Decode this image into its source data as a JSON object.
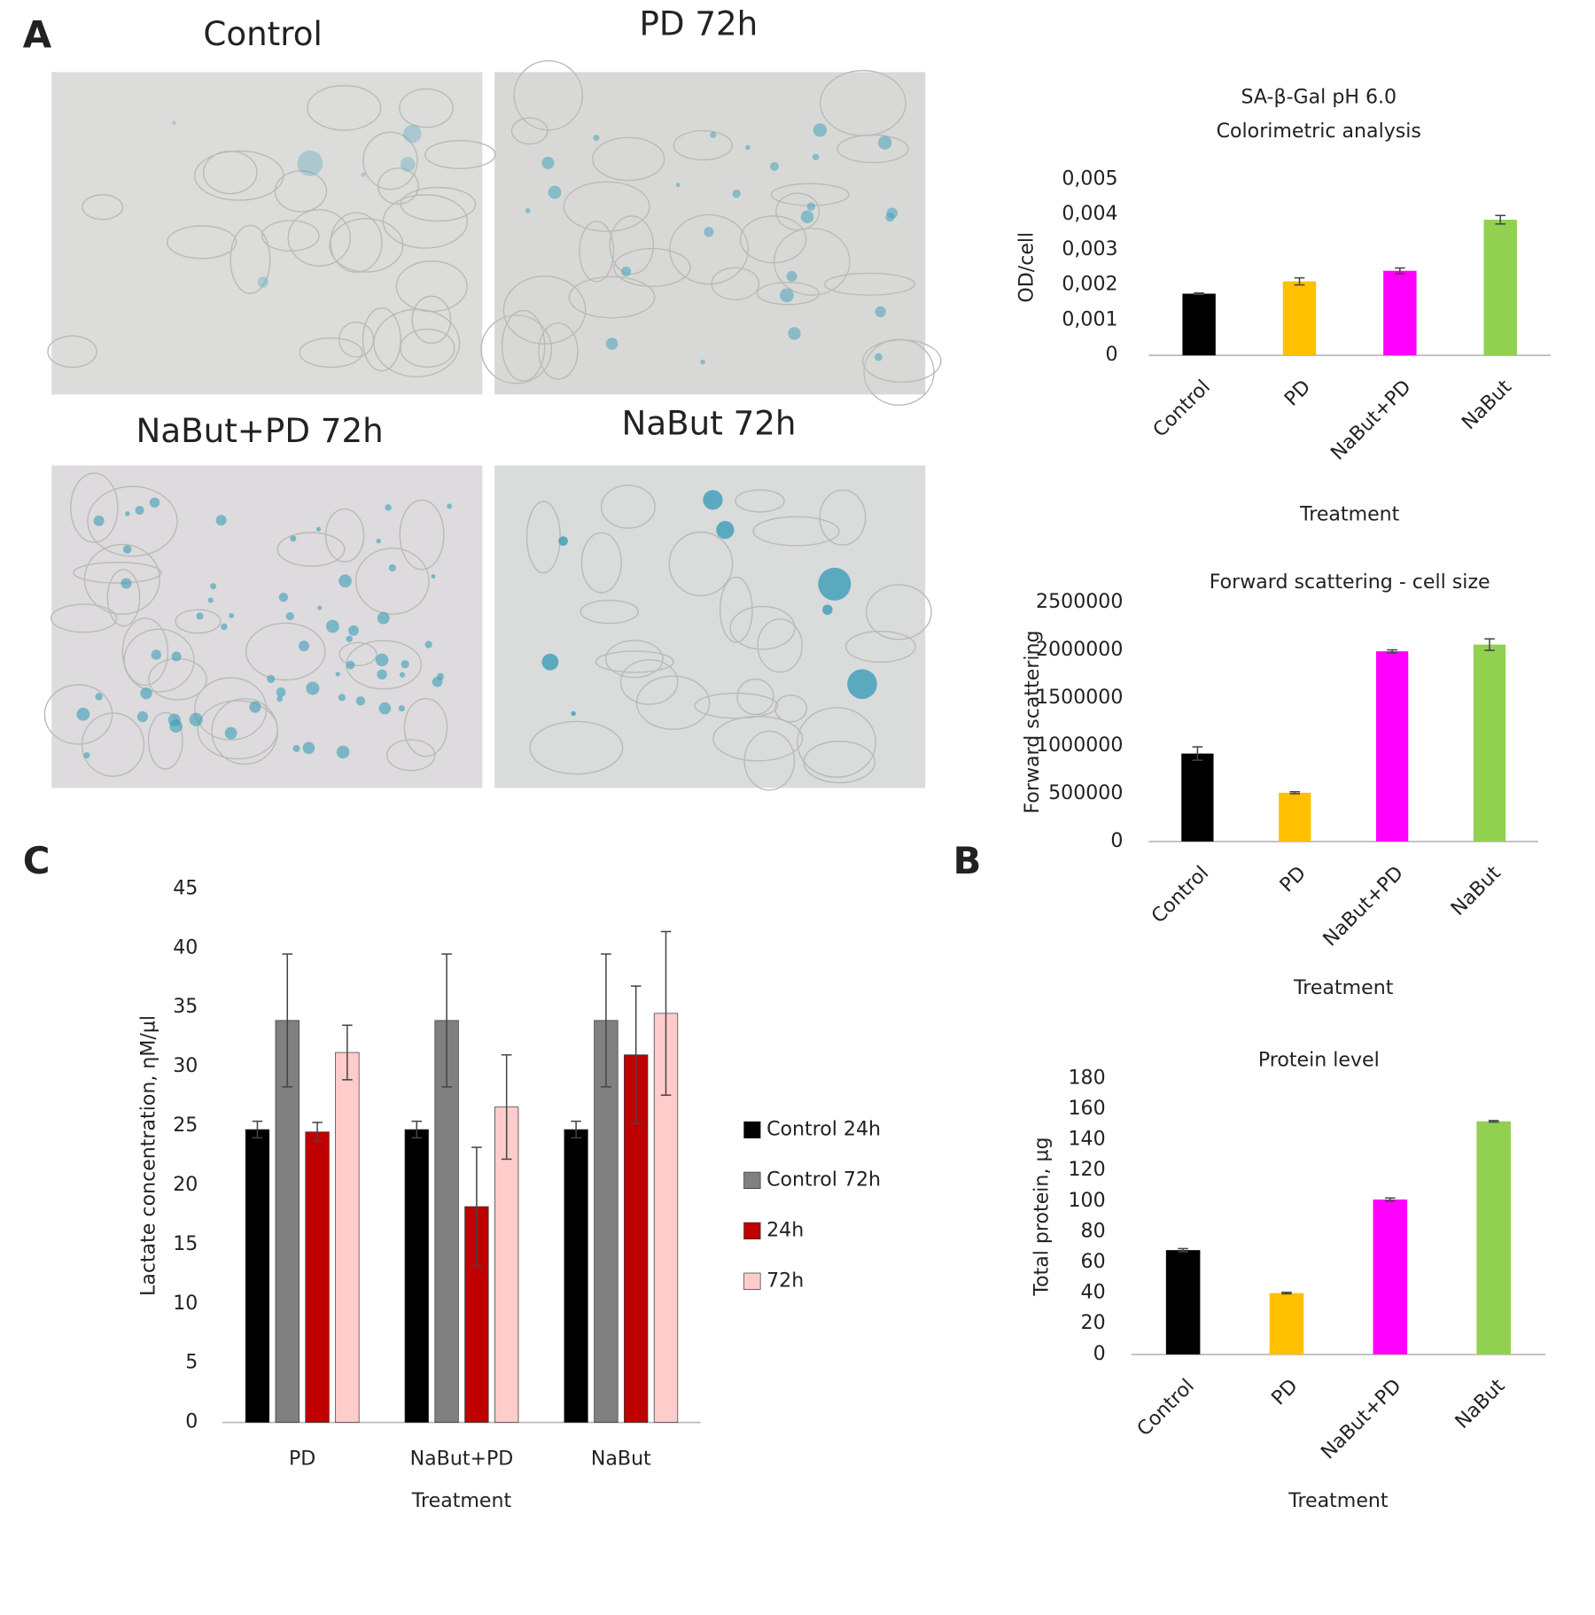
{
  "panel_labels": [
    "A",
    "B",
    "C"
  ],
  "image_titles": [
    "Control",
    "PD 72h",
    "NaBut+PD 72h",
    "NaBut 72h"
  ],
  "chart_data": [
    {
      "type": "bar",
      "title": [
        "SA-β-Gal pH 6.0",
        "Colorimetric analysis"
      ],
      "y_label": "OD/cell",
      "x_label": "Treatment",
      "categories": [
        "Control",
        "PD",
        "NaBut+PD",
        "NaBut"
      ],
      "values": [
        0.00175,
        0.0021,
        0.0024,
        0.00385
      ],
      "errors": [
        2e-05,
        0.0001,
        8e-05,
        0.00012
      ],
      "colors": [
        "#000000",
        "#ffc000",
        "#ff00ff",
        "#92d050"
      ],
      "ylim": [
        0,
        0.005
      ],
      "yticks": [
        0,
        {
          "value": 0.001,
          "label": "0,001"
        },
        {
          "value": 0.002,
          "label": "0,002"
        },
        {
          "value": 0.003,
          "label": "0,003"
        },
        {
          "value": 0.004,
          "label": "0,004"
        },
        {
          "value": 0.005,
          "label": "0,005"
        }
      ]
    },
    {
      "type": "bar",
      "title": [
        "Forward scattering - cell size"
      ],
      "y_label": "Forward scattering",
      "x_label": "Treatment",
      "categories": [
        "Control",
        "PD",
        "NaBut+PD",
        "NaBut"
      ],
      "values": [
        920000,
        510000,
        1990000,
        2060000
      ],
      "errors": [
        70000,
        10000,
        15000,
        60000
      ],
      "colors": [
        "#000000",
        "#ffc000",
        "#ff00ff",
        "#92d050"
      ],
      "ylim": [
        0,
        2500000
      ],
      "yticks": [
        0,
        500000,
        1000000,
        1500000,
        2000000,
        2500000
      ]
    },
    {
      "type": "bar",
      "title": [
        "Protein level"
      ],
      "y_label": "Total protein, µg",
      "x_label": "Treatment",
      "categories": [
        "Control",
        "PD",
        "NaBut+PD",
        "NaBut"
      ],
      "values": [
        68,
        40,
        101,
        152
      ],
      "errors": [
        1,
        0.5,
        1,
        0.5
      ],
      "colors": [
        "#000000",
        "#ffc000",
        "#ff00ff",
        "#92d050"
      ],
      "ylim": [
        0,
        180
      ],
      "yticks": [
        0,
        20,
        40,
        60,
        80,
        100,
        120,
        140,
        160,
        180
      ]
    },
    {
      "type": "grouped-bar",
      "y_label": "Lactate concentration, ηM/µl",
      "x_label": "Treatment",
      "categories": [
        "PD",
        "NaBut+PD",
        "NaBut"
      ],
      "series": [
        {
          "name": "Control 24h",
          "color": "#000000",
          "values": [
            24.7,
            24.7,
            24.7
          ],
          "errors": [
            0.7,
            0.7,
            0.7
          ]
        },
        {
          "name": "Control 72h",
          "color": "#808080",
          "values": [
            33.9,
            33.9,
            33.9
          ],
          "errors": [
            5.6,
            5.6,
            5.6
          ]
        },
        {
          "name": "24h",
          "color": "#c00000",
          "values": [
            24.5,
            18.2,
            31.0
          ],
          "errors": [
            0.8,
            5.0,
            5.8
          ]
        },
        {
          "name": "72h",
          "color": "#ffcccc",
          "values": [
            31.2,
            26.6,
            34.5
          ],
          "errors": [
            2.3,
            4.4,
            6.9
          ]
        }
      ],
      "ylim": [
        0,
        45
      ],
      "yticks": [
        0,
        5,
        10,
        15,
        20,
        25,
        30,
        35,
        40,
        45
      ]
    }
  ]
}
